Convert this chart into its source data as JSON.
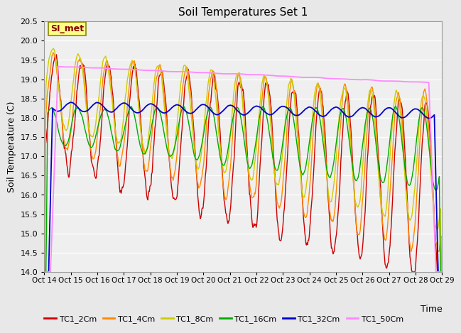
{
  "title": "Soil Temperatures Set 1",
  "ylabel": "Soil Temperature (C)",
  "xlabel": "Time",
  "ylim": [
    14.0,
    20.5
  ],
  "yticks": [
    14.0,
    14.5,
    15.0,
    15.5,
    16.0,
    16.5,
    17.0,
    17.5,
    18.0,
    18.5,
    19.0,
    19.5,
    20.0,
    20.5
  ],
  "xtick_labels": [
    "Oct 14",
    "Oct 15",
    "Oct 16",
    "Oct 17",
    "Oct 18",
    "Oct 19",
    "Oct 20",
    "Oct 21",
    "Oct 22",
    "Oct 23",
    "Oct 24",
    "Oct 25",
    "Oct 26",
    "Oct 27",
    "Oct 28",
    "Oct 29"
  ],
  "series_names": [
    "TC1_2Cm",
    "TC1_4Cm",
    "TC1_8Cm",
    "TC1_16Cm",
    "TC1_32Cm",
    "TC1_50Cm"
  ],
  "series_colors": [
    "#cc0000",
    "#ff8800",
    "#cccc00",
    "#00aa00",
    "#0000cc",
    "#ff88ff"
  ],
  "line_widths": [
    1.0,
    1.0,
    1.0,
    1.0,
    1.3,
    1.3
  ],
  "bg_color": "#e8e8e8",
  "plot_bg_color": "#efefef",
  "grid_color": "#ffffff",
  "annotation_text": "SI_met",
  "annotation_bg": "#ffff88",
  "annotation_border": "#888800",
  "annotation_text_color": "#880000",
  "n_points": 720,
  "n_days": 15
}
